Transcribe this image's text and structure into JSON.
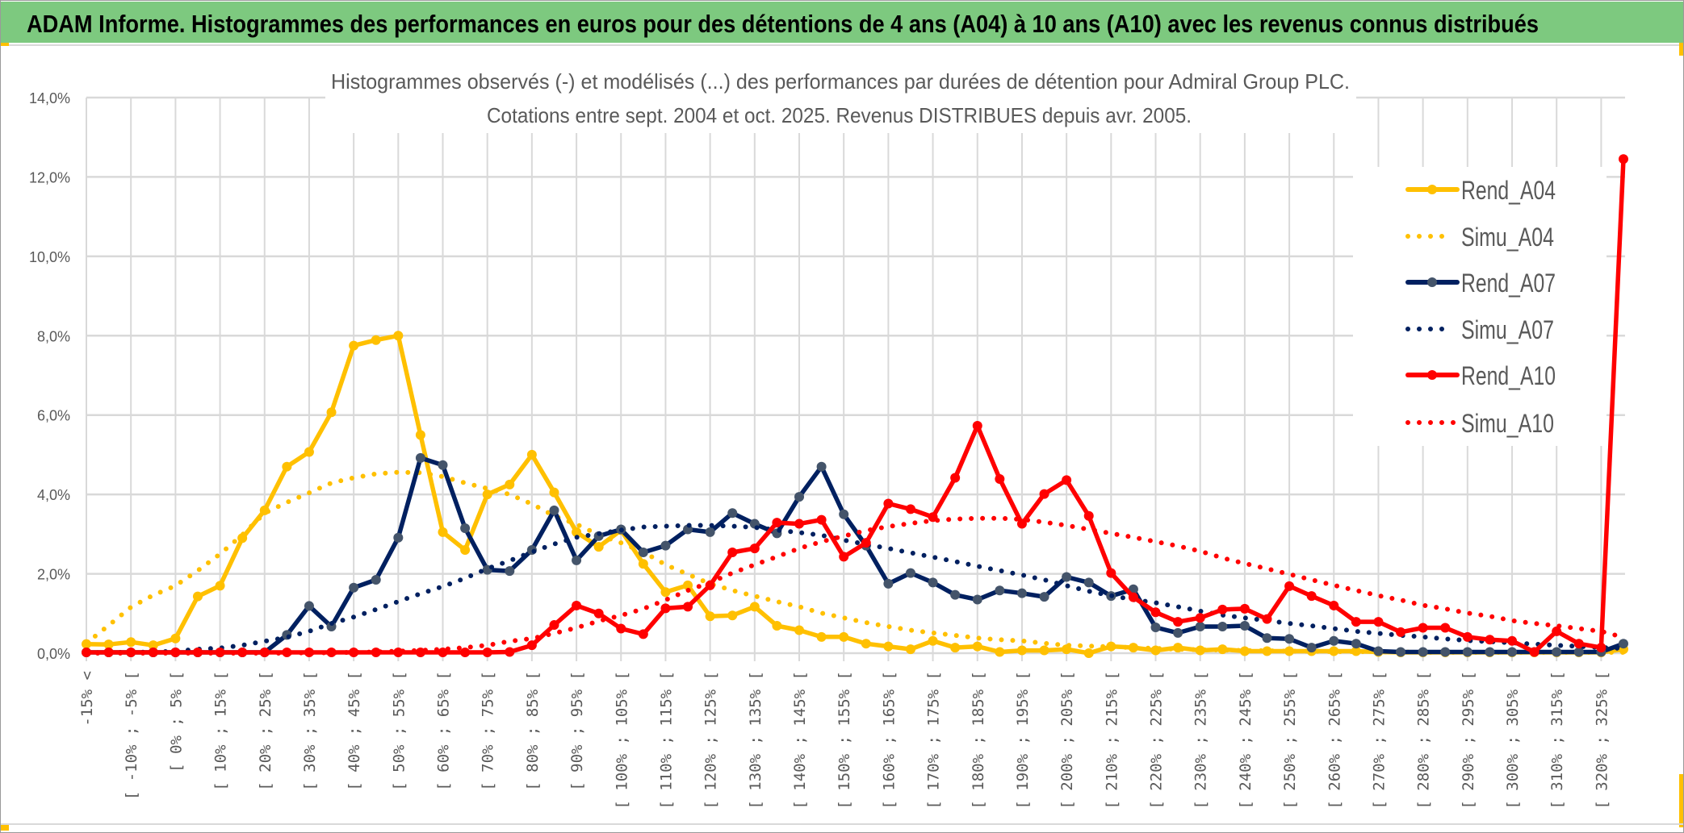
{
  "header": {
    "title": "ADAM Informe. Histogrammes des performances en euros pour des détentions de 4 ans (A04) à 10 ans (A10) avec les revenus connus distribués",
    "bar_color": "#7DC97F"
  },
  "chart_data": {
    "type": "line",
    "title": [
      "Histogrammes observés (-) et modélisés (...) des performances par durées de détention pour Admiral Group PLC.",
      "Cotations entre sept. 2004 et oct. 2025. Revenus DISTRIBUES depuis avr. 2005."
    ],
    "ylim": [
      0,
      14
    ],
    "y_unit": "%",
    "y_ticks": [
      "0,0%",
      "2,0%",
      "4,0%",
      "6,0%",
      "8,0%",
      "10,0%",
      "12,0%",
      "14,0%"
    ],
    "x_tick_every": 2,
    "x_tick_labels": [
      "-15% <",
      "[ -10% ; -5% [",
      "[ 0% ; 5% [",
      "[ 10% ; 15% [",
      "[ 20% ; 25% [",
      "[ 30% ; 35% [",
      "[ 40% ; 45% [",
      "[ 50% ; 55% [",
      "[ 60% ; 65% [",
      "[ 70% ; 75% [",
      "[ 80% ; 85% [",
      "[ 90% ; 95% [",
      "[ 100% ; 105% [",
      "[ 110% ; 115% [",
      "[ 120% ; 125% [",
      "[ 130% ; 135% [",
      "[ 140% ; 145% [",
      "[ 150% ; 155% [",
      "[ 160% ; 165% [",
      "[ 170% ; 175% [",
      "[ 180% ; 185% [",
      "[ 190% ; 195% [",
      "[ 200% ; 205% [",
      "[ 210% ; 215% [",
      "[ 220% ; 225% [",
      "[ 230% ; 235% [",
      "[ 240% ; 245% [",
      "[ 250% ; 255% [",
      "[ 260% ; 265% [",
      "[ 270% ; 275% [",
      "[ 280% ; 285% [",
      "[ 290% ; 295% [",
      "[ 300% ; 305% [",
      "[ 310% ; 315% [",
      "[ 320% ; 325% ["
    ],
    "grid": true,
    "legend": "right",
    "series": [
      {
        "name": "Rend_A04",
        "style": "solid",
        "markers": true,
        "color": "#FFC000",
        "marker_color": "#FFC000",
        "values": [
          0.23,
          0.22,
          0.28,
          0.2,
          0.37,
          1.43,
          1.7,
          2.9,
          3.6,
          4.7,
          5.07,
          6.07,
          7.75,
          7.89,
          8.0,
          5.5,
          3.05,
          2.6,
          4.0,
          4.25,
          5.0,
          4.05,
          3.05,
          2.68,
          3.1,
          2.25,
          1.54,
          1.71,
          0.93,
          0.95,
          1.17,
          0.69,
          0.58,
          0.41,
          0.41,
          0.24,
          0.17,
          0.1,
          0.31,
          0.14,
          0.17,
          0.03,
          0.07,
          0.07,
          0.1,
          0.0,
          0.17,
          0.14,
          0.07,
          0.14,
          0.07,
          0.1,
          0.05,
          0.05,
          0.05,
          0.05,
          0.05,
          0.05,
          0.03,
          0.02,
          0.02,
          0.02,
          0.02,
          0.02,
          0.02,
          0.02,
          0.02,
          0.02,
          0.02,
          0.1
        ]
      },
      {
        "name": "Simu_A04",
        "style": "dotted",
        "markers": false,
        "color": "#FFC000",
        "values": [
          0.25,
          0.7,
          1.16,
          1.46,
          1.7,
          2.08,
          2.5,
          2.98,
          3.53,
          3.8,
          4.04,
          4.29,
          4.42,
          4.52,
          4.56,
          4.55,
          4.45,
          4.29,
          4.15,
          4.0,
          3.76,
          3.46,
          3.25,
          2.98,
          2.78,
          2.55,
          2.23,
          1.99,
          1.75,
          1.58,
          1.44,
          1.3,
          1.17,
          1.01,
          0.89,
          0.77,
          0.67,
          0.58,
          0.51,
          0.45,
          0.38,
          0.34,
          0.31,
          0.25,
          0.2,
          0.18,
          0.16,
          0.14,
          0.12,
          0.1,
          0.09,
          0.08,
          0.07,
          0.06,
          0.05,
          0.05,
          0.04,
          0.04,
          0.03,
          0.03,
          0.02,
          0.02,
          0.02,
          0.02,
          0.02,
          0.02,
          0.02,
          0.02,
          0.02,
          0.02
        ]
      },
      {
        "name": "Rend_A07",
        "style": "solid",
        "markers": true,
        "color": "#002060",
        "marker_color": "#44546A",
        "values": [
          0.02,
          0.02,
          0.02,
          0.02,
          0.02,
          0.02,
          0.02,
          0.02,
          0.02,
          0.46,
          1.19,
          0.67,
          1.65,
          1.85,
          2.91,
          4.92,
          4.74,
          3.15,
          2.1,
          2.07,
          2.6,
          3.6,
          2.34,
          2.95,
          3.12,
          2.54,
          2.71,
          3.12,
          3.05,
          3.53,
          3.26,
          3.02,
          3.94,
          4.7,
          3.5,
          2.71,
          1.75,
          2.02,
          1.78,
          1.47,
          1.35,
          1.58,
          1.51,
          1.42,
          1.92,
          1.78,
          1.44,
          1.61,
          0.65,
          0.51,
          0.67,
          0.67,
          0.69,
          0.38,
          0.36,
          0.14,
          0.31,
          0.24,
          0.05,
          0.03,
          0.03,
          0.03,
          0.03,
          0.03,
          0.03,
          0.03,
          0.03,
          0.03,
          0.03,
          0.24
        ]
      },
      {
        "name": "Simu_A07",
        "style": "dotted",
        "markers": false,
        "color": "#002060",
        "values": [
          0.01,
          0.02,
          0.02,
          0.03,
          0.05,
          0.1,
          0.13,
          0.2,
          0.3,
          0.4,
          0.55,
          0.75,
          0.91,
          1.1,
          1.3,
          1.5,
          1.68,
          1.89,
          2.13,
          2.33,
          2.55,
          2.75,
          2.92,
          3.01,
          3.1,
          3.18,
          3.2,
          3.22,
          3.22,
          3.2,
          3.17,
          3.1,
          3.04,
          2.97,
          2.85,
          2.74,
          2.64,
          2.53,
          2.42,
          2.31,
          2.19,
          2.08,
          1.97,
          1.85,
          1.7,
          1.56,
          1.45,
          1.35,
          1.27,
          1.17,
          1.06,
          0.96,
          0.89,
          0.82,
          0.75,
          0.69,
          0.62,
          0.55,
          0.5,
          0.45,
          0.41,
          0.36,
          0.32,
          0.29,
          0.26,
          0.23,
          0.2,
          0.17,
          0.14,
          0.12
        ]
      },
      {
        "name": "Rend_A10",
        "style": "solid",
        "markers": true,
        "color": "#FF0000",
        "marker_color": "#FF0000",
        "values": [
          0.02,
          0.02,
          0.02,
          0.02,
          0.02,
          0.02,
          0.02,
          0.02,
          0.02,
          0.02,
          0.02,
          0.02,
          0.02,
          0.02,
          0.02,
          0.02,
          0.02,
          0.02,
          0.02,
          0.03,
          0.2,
          0.71,
          1.2,
          1.0,
          0.62,
          0.48,
          1.13,
          1.17,
          1.71,
          2.54,
          2.64,
          3.29,
          3.26,
          3.36,
          2.43,
          2.78,
          3.77,
          3.63,
          3.43,
          4.42,
          5.73,
          4.39,
          3.26,
          4.01,
          4.36,
          3.46,
          2.02,
          1.41,
          1.03,
          0.79,
          0.89,
          1.1,
          1.12,
          0.86,
          1.69,
          1.44,
          1.2,
          0.79,
          0.79,
          0.53,
          0.64,
          0.64,
          0.41,
          0.34,
          0.31,
          0.03,
          0.55,
          0.24,
          0.14,
          12.45
        ]
      },
      {
        "name": "Simu_A10",
        "style": "dotted",
        "markers": false,
        "color": "#FF0000",
        "values": [
          0.0,
          0.0,
          0.0,
          0.0,
          0.0,
          0.0,
          0.0,
          0.0,
          0.0,
          0.0,
          0.01,
          0.01,
          0.02,
          0.03,
          0.05,
          0.07,
          0.1,
          0.14,
          0.2,
          0.3,
          0.37,
          0.5,
          0.64,
          0.81,
          0.95,
          1.12,
          1.34,
          1.58,
          1.78,
          2.02,
          2.23,
          2.43,
          2.64,
          2.81,
          2.95,
          3.09,
          3.19,
          3.27,
          3.34,
          3.38,
          3.4,
          3.4,
          3.37,
          3.3,
          3.22,
          3.12,
          3.02,
          2.92,
          2.81,
          2.7,
          2.57,
          2.4,
          2.26,
          2.13,
          1.99,
          1.85,
          1.71,
          1.58,
          1.45,
          1.34,
          1.21,
          1.12,
          1.01,
          0.93,
          0.82,
          0.75,
          0.69,
          0.62,
          0.55,
          0.4
        ]
      }
    ]
  }
}
